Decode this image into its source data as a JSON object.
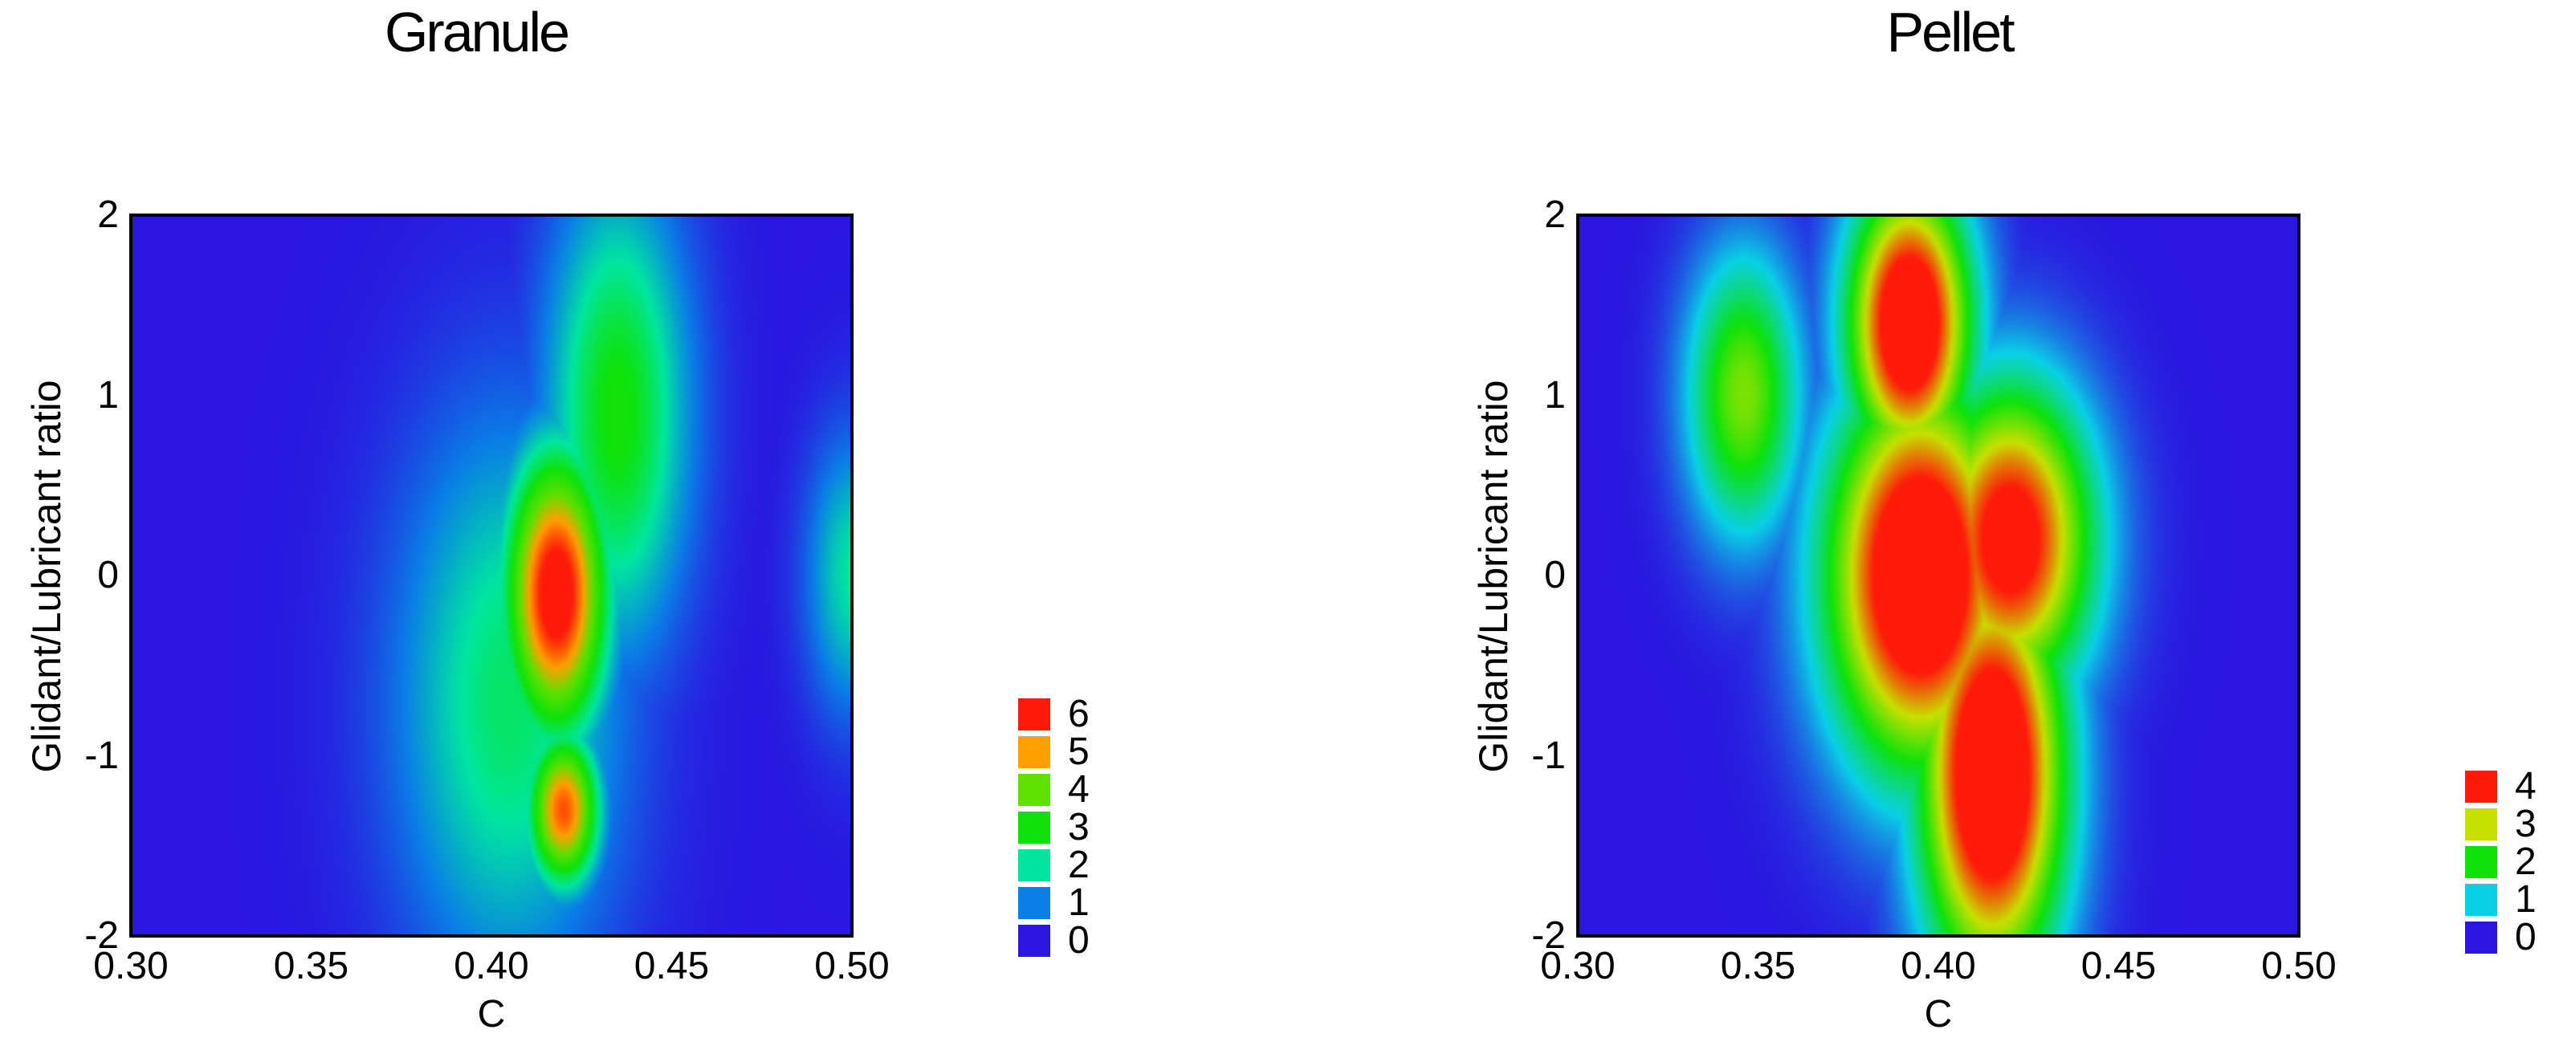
{
  "chart_data": [
    {
      "type": "heatmap",
      "title": "Granule",
      "xlabel": "C",
      "ylabel": "Glidant/Lubricant ratio",
      "xlim": [
        0.3,
        0.5
      ],
      "ylim": [
        -2,
        2
      ],
      "xticks": [
        "0.30",
        "0.35",
        "0.40",
        "0.45",
        "0.50"
      ],
      "yticks": [
        "2",
        "1",
        "0",
        "-1",
        "-2"
      ],
      "legend": [
        {
          "label": "6",
          "color": "#ff1a0a"
        },
        {
          "label": "5",
          "color": "#ff9f00"
        },
        {
          "label": "4",
          "color": "#5ee000"
        },
        {
          "label": "3",
          "color": "#0ee20a"
        },
        {
          "label": "2",
          "color": "#00e6a0"
        },
        {
          "label": "1",
          "color": "#0a7fe6"
        },
        {
          "label": "0",
          "color": "#2a16e0"
        }
      ],
      "background": "#2b14dc",
      "hotspots": [
        {
          "x": 0.418,
          "y": -0.1,
          "value": 6.6,
          "sx": 0.01,
          "sy": 0.55
        },
        {
          "x": 0.42,
          "y": -1.3,
          "value": 5.6,
          "sx": 0.007,
          "sy": 0.3
        },
        {
          "x": 0.435,
          "y": 0.9,
          "value": 3.1,
          "sx": 0.014,
          "sy": 0.9
        },
        {
          "x": 0.405,
          "y": -0.7,
          "value": 2.4,
          "sx": 0.022,
          "sy": 1.1
        },
        {
          "x": 0.5,
          "y": 0.0,
          "value": 2.0,
          "sx": 0.009,
          "sy": 0.55
        }
      ]
    },
    {
      "type": "heatmap",
      "title": "Pellet",
      "xlabel": "C",
      "ylabel": "Glidant/Lubricant ratio",
      "xlim": [
        0.3,
        0.5
      ],
      "ylim": [
        -2,
        2
      ],
      "xticks": [
        "0.30",
        "0.35",
        "0.40",
        "0.45",
        "0.50"
      ],
      "yticks": [
        "2",
        "1",
        "0",
        "-1",
        "-2"
      ],
      "legend": [
        {
          "label": "4",
          "color": "#ff1a0a"
        },
        {
          "label": "3",
          "color": "#c8e000"
        },
        {
          "label": "2",
          "color": "#0ee20a"
        },
        {
          "label": "1",
          "color": "#0ad0e6"
        },
        {
          "label": "0",
          "color": "#2a16e0"
        }
      ],
      "background": "#2b14dc",
      "hotspots": [
        {
          "x": 0.346,
          "y": 1.0,
          "value": 2.6,
          "sx": 0.011,
          "sy": 0.55
        },
        {
          "x": 0.392,
          "y": 1.4,
          "value": 5.0,
          "sx": 0.012,
          "sy": 0.55
        },
        {
          "x": 0.395,
          "y": 0.0,
          "value": 5.2,
          "sx": 0.018,
          "sy": 0.75
        },
        {
          "x": 0.415,
          "y": -1.1,
          "value": 5.2,
          "sx": 0.014,
          "sy": 0.8
        },
        {
          "x": 0.42,
          "y": 0.2,
          "value": 4.5,
          "sx": 0.016,
          "sy": 0.6
        }
      ]
    }
  ]
}
